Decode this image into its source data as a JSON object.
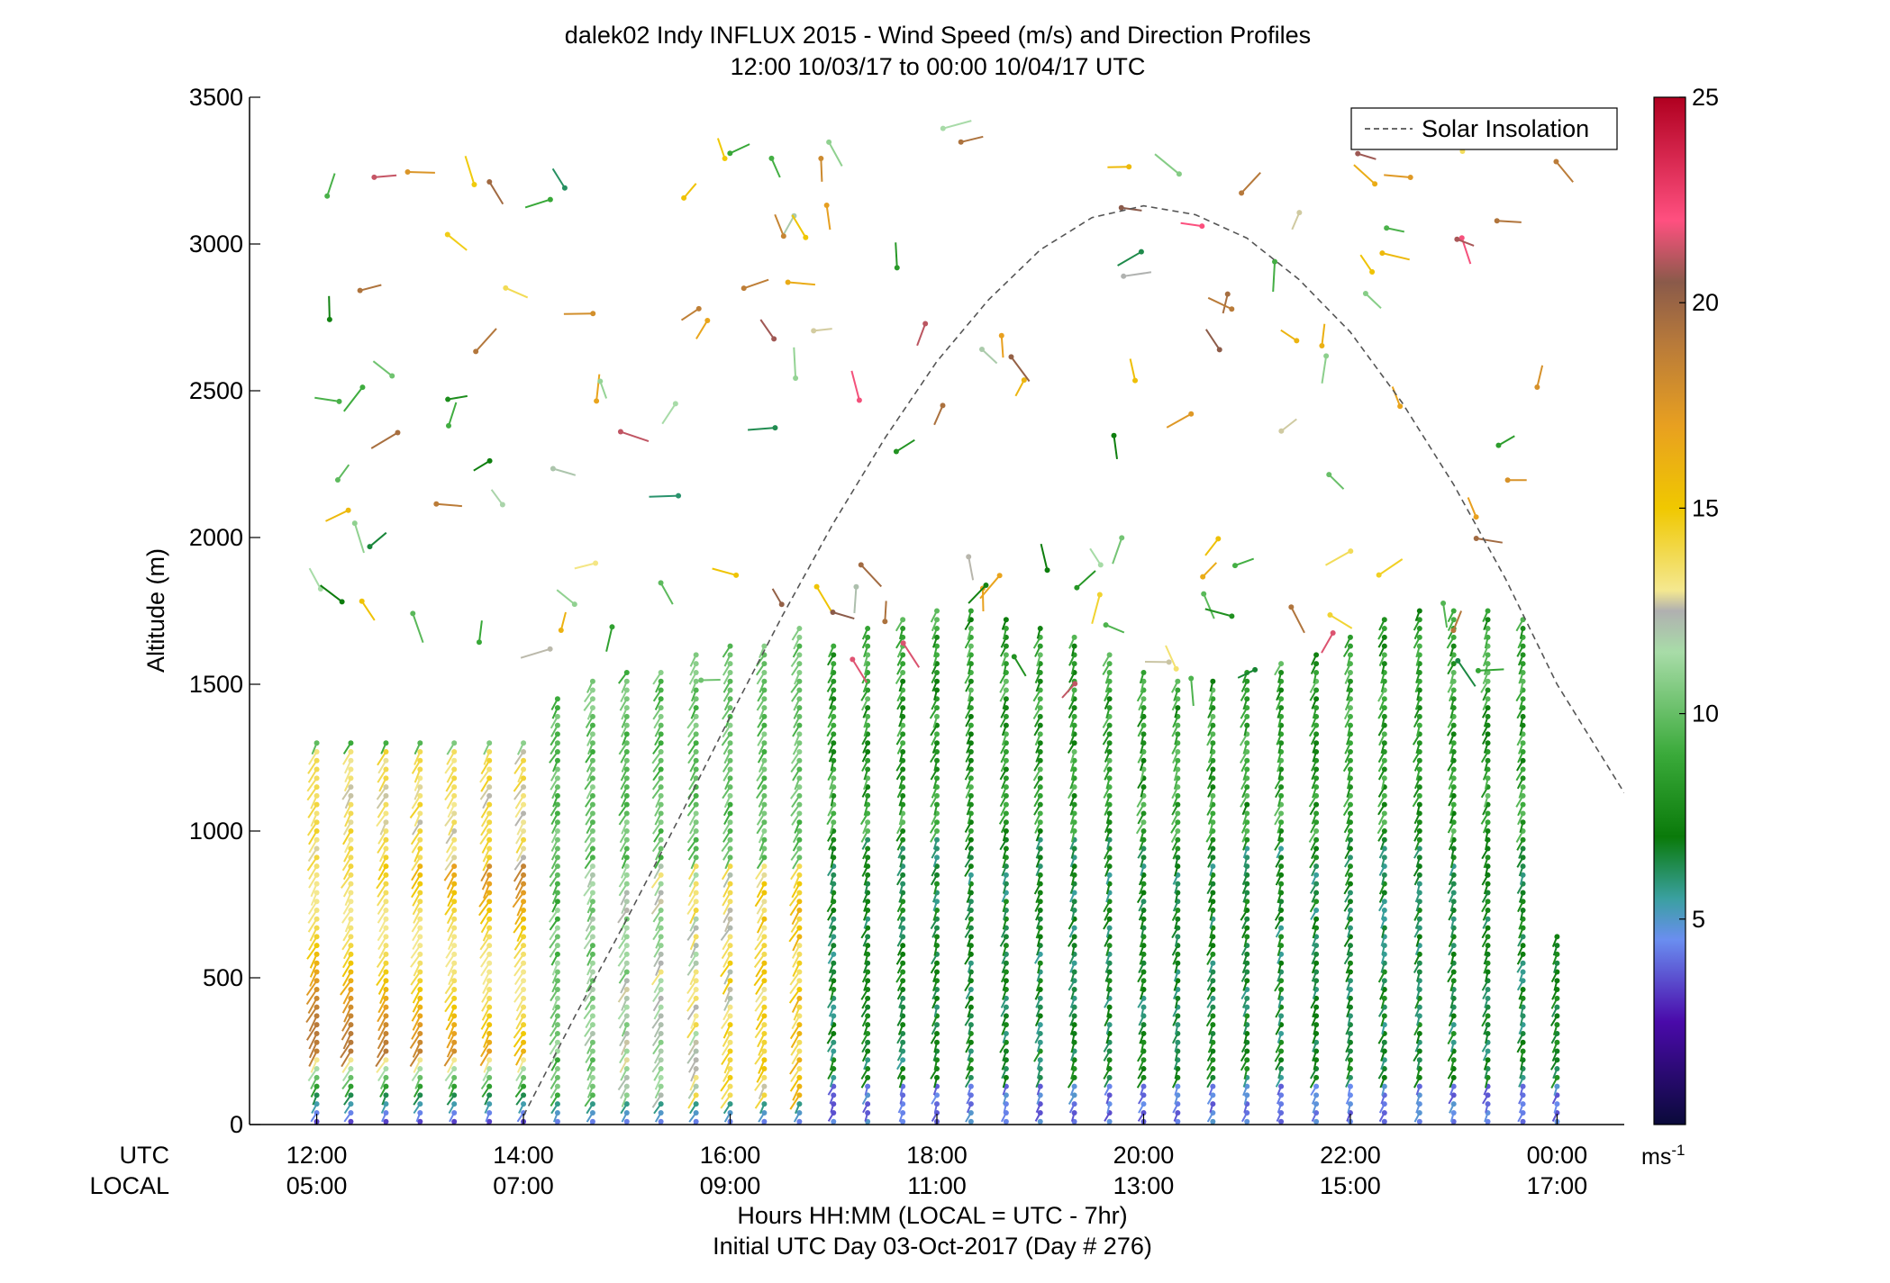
{
  "chart_data": {
    "type": "scatter",
    "title": "dalek02 Indy INFLUX 2015 - Wind Speed (m/s) and Direction Profiles",
    "subtitle": "12:00 10/03/17 to 00:00 10/04/17  UTC",
    "ylabel": "Altitude (m)",
    "xlabel": "Hours HH:MM  (LOCAL = UTC - 7hr)",
    "xlabel2": "Initial UTC Day 03-Oct-2017 (Day # 276)",
    "x_row_labels": [
      "UTC",
      "LOCAL"
    ],
    "xlim": [
      11.35,
      24.65
    ],
    "ylim": [
      0,
      3500
    ],
    "yticks": [
      0,
      500,
      1000,
      1500,
      2000,
      2500,
      3000,
      3500
    ],
    "ytick_labels": [
      "0",
      "500",
      "1000",
      "1500",
      "2000",
      "2500",
      "3000",
      "3500"
    ],
    "xticks": [
      12,
      14,
      16,
      18,
      20,
      22,
      24
    ],
    "xtick_labels_utc": [
      "12:00",
      "14:00",
      "16:00",
      "18:00",
      "20:00",
      "22:00",
      "00:00"
    ],
    "xtick_labels_local": [
      "05:00",
      "07:00",
      "09:00",
      "11:00",
      "13:00",
      "15:00",
      "17:00"
    ],
    "legend": {
      "label": "Solar Insolation",
      "position": "top-right"
    },
    "colorbar": {
      "range": [
        0,
        25
      ],
      "ticks": [
        5,
        10,
        15,
        20,
        25
      ],
      "tick_labels": [
        "5",
        "10",
        "15",
        "20",
        "25"
      ],
      "unit_label": "ms",
      "unit_exponent": "-1",
      "stops": [
        {
          "v": 0,
          "c": "#0a0a3a"
        },
        {
          "v": 2.5,
          "c": "#4a0aaa"
        },
        {
          "v": 4.5,
          "c": "#6a8ef0"
        },
        {
          "v": 5.5,
          "c": "#3aa0a0"
        },
        {
          "v": 7,
          "c": "#0a7a0a"
        },
        {
          "v": 9,
          "c": "#3aaa3a"
        },
        {
          "v": 11.5,
          "c": "#a8dca8"
        },
        {
          "v": 12.5,
          "c": "#b0b0b0"
        },
        {
          "v": 13,
          "c": "#f4e890"
        },
        {
          "v": 15,
          "c": "#f0c800"
        },
        {
          "v": 17,
          "c": "#e8a020"
        },
        {
          "v": 19,
          "c": "#b87a3a"
        },
        {
          "v": 20.5,
          "c": "#8a5a4a"
        },
        {
          "v": 22,
          "c": "#ff5080"
        },
        {
          "v": 25,
          "c": "#b00020"
        }
      ]
    },
    "solar_insolation": {
      "style": "dashed",
      "color": "#555555",
      "peak_time": 20.0,
      "peak_altitude": 3130,
      "x": [
        14.0,
        14.5,
        15.0,
        15.5,
        16.0,
        16.5,
        17.0,
        17.5,
        18.0,
        18.5,
        19.0,
        19.5,
        20.0,
        20.5,
        21.0,
        21.5,
        22.0,
        22.5,
        23.0,
        23.5,
        24.0,
        24.65
      ],
      "y": [
        30,
        370,
        700,
        1040,
        1390,
        1730,
        2050,
        2340,
        2600,
        2810,
        2980,
        3090,
        3130,
        3100,
        3020,
        2880,
        2700,
        2460,
        2180,
        1860,
        1500,
        1130
      ]
    },
    "profiles": [
      {
        "t": 12.0,
        "regime": "night"
      },
      {
        "t": 12.33,
        "regime": "night"
      },
      {
        "t": 12.67,
        "regime": "night"
      },
      {
        "t": 13.0,
        "regime": "night"
      },
      {
        "t": 13.33,
        "regime": "night"
      },
      {
        "t": 13.67,
        "regime": "night"
      },
      {
        "t": 14.0,
        "regime": "night"
      },
      {
        "t": 14.33,
        "regime": "transition"
      },
      {
        "t": 14.67,
        "regime": "transition"
      },
      {
        "t": 15.0,
        "regime": "transition"
      },
      {
        "t": 15.33,
        "regime": "transition"
      },
      {
        "t": 15.67,
        "regime": "transition"
      },
      {
        "t": 16.0,
        "regime": "transition"
      },
      {
        "t": 16.33,
        "regime": "transition"
      },
      {
        "t": 16.67,
        "regime": "transition"
      },
      {
        "t": 17.0,
        "regime": "day"
      },
      {
        "t": 17.33,
        "regime": "day"
      },
      {
        "t": 17.67,
        "regime": "day"
      },
      {
        "t": 18.0,
        "regime": "day"
      },
      {
        "t": 18.33,
        "regime": "day"
      },
      {
        "t": 18.67,
        "regime": "day"
      },
      {
        "t": 19.0,
        "regime": "day"
      },
      {
        "t": 19.33,
        "regime": "day"
      },
      {
        "t": 19.67,
        "regime": "day"
      },
      {
        "t": 20.0,
        "regime": "day"
      },
      {
        "t": 20.33,
        "regime": "day"
      },
      {
        "t": 20.67,
        "regime": "day"
      },
      {
        "t": 21.0,
        "regime": "day"
      },
      {
        "t": 21.33,
        "regime": "day"
      },
      {
        "t": 21.67,
        "regime": "day"
      },
      {
        "t": 22.0,
        "regime": "day"
      },
      {
        "t": 22.33,
        "regime": "day"
      },
      {
        "t": 22.67,
        "regime": "day"
      },
      {
        "t": 23.0,
        "regime": "day"
      },
      {
        "t": 23.33,
        "regime": "day"
      },
      {
        "t": 23.67,
        "regime": "day"
      },
      {
        "t": 24.0,
        "regime": "day"
      }
    ]
  }
}
